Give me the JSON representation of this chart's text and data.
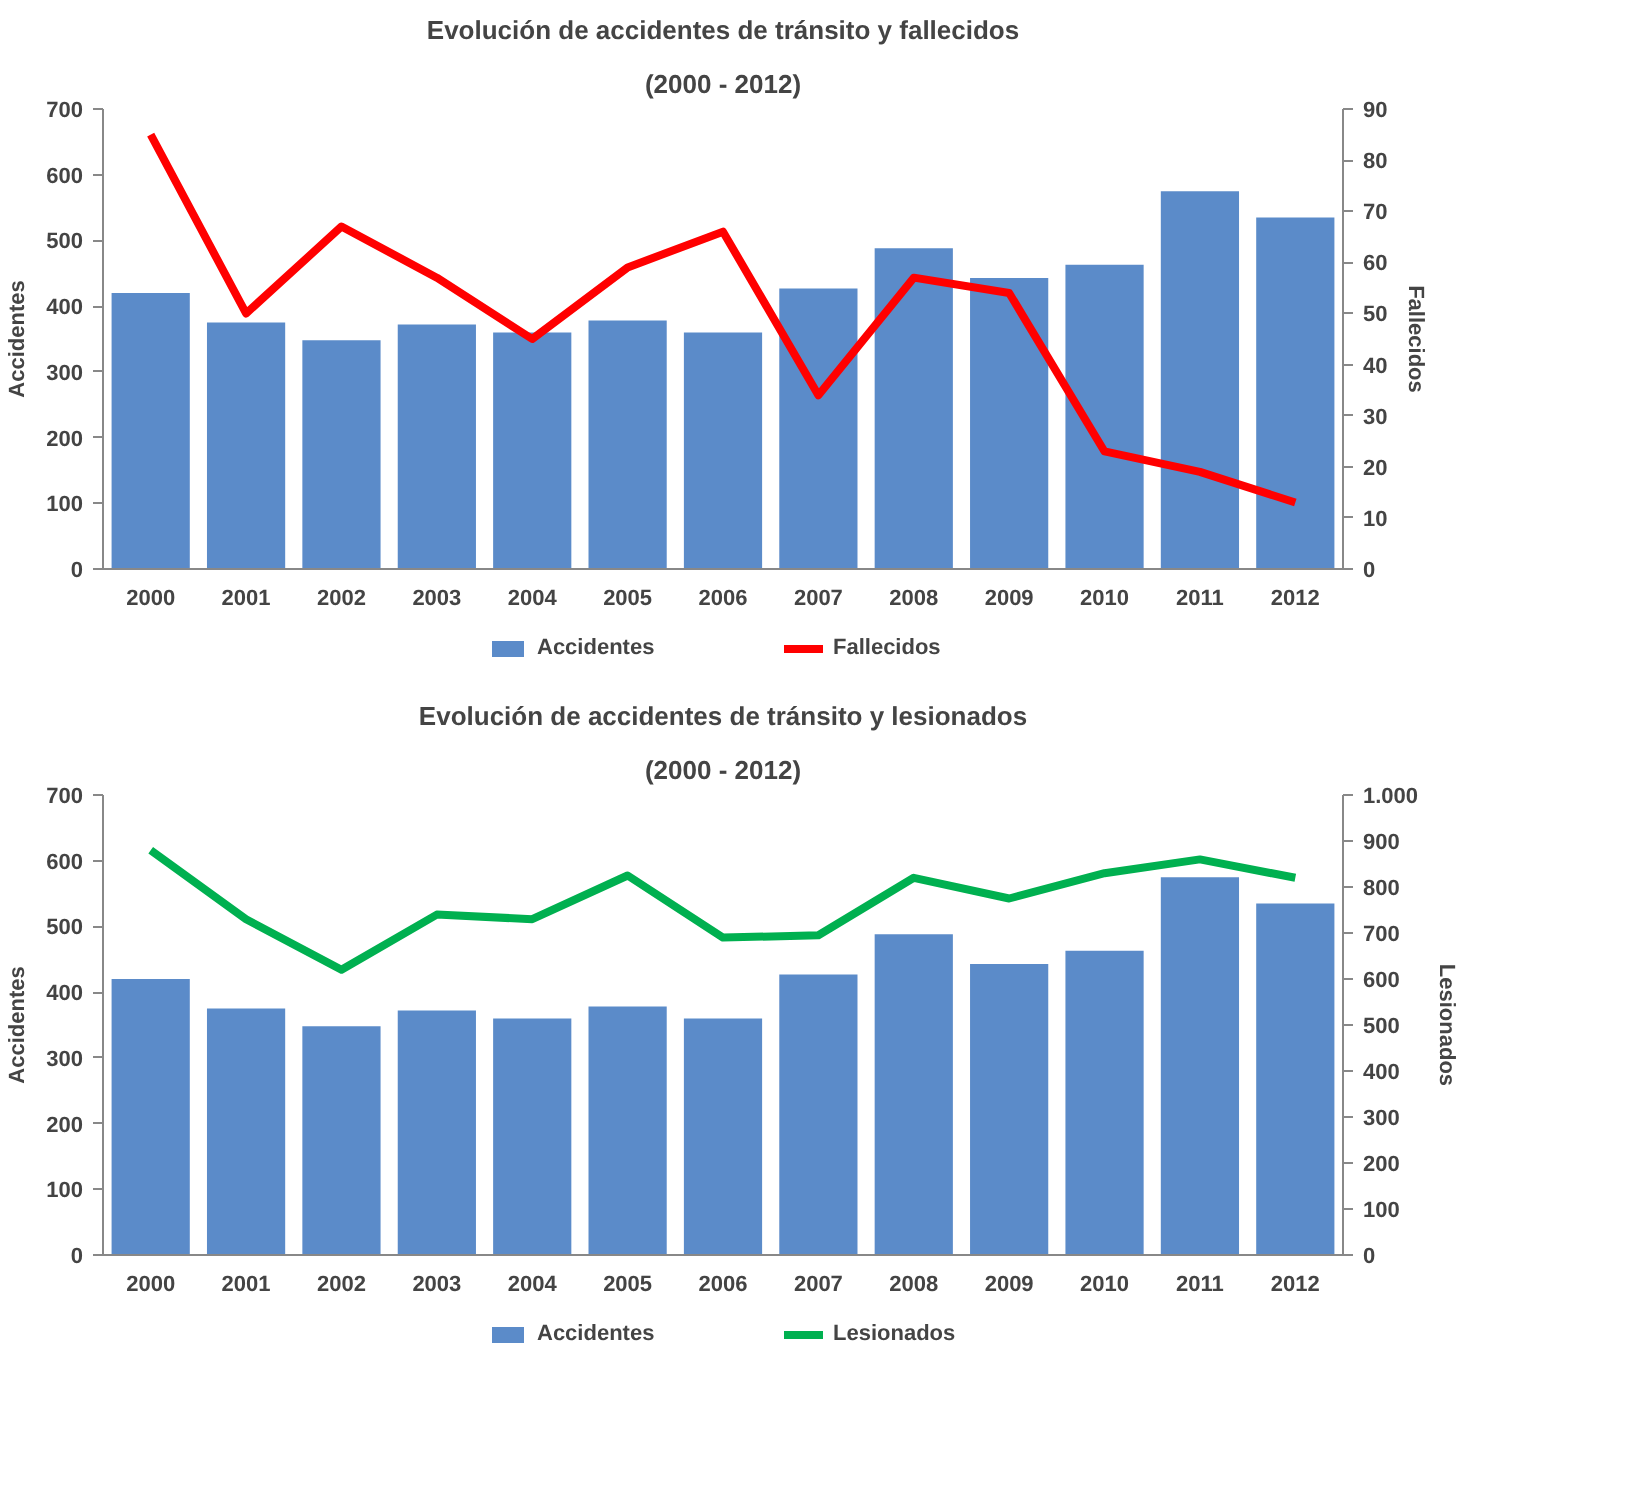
{
  "chart_data": [
    {
      "type": "bar",
      "title": "Evolución de accidentes de tránsito y fallecidos",
      "subtitle": "(2000 - 2012)",
      "ylabel": "Accidentes",
      "y2label": "Fallecidos",
      "categories": [
        "2000",
        "2001",
        "2002",
        "2003",
        "2004",
        "2005",
        "2006",
        "2007",
        "2008",
        "2009",
        "2010",
        "2011",
        "2012"
      ],
      "series": [
        {
          "name": "Accidentes",
          "color": "#5b8bc9",
          "values": [
            420,
            375,
            348,
            372,
            360,
            378,
            360,
            427,
            488,
            443,
            463,
            575,
            535
          ]
        },
        {
          "name": "Fallecidos",
          "type": "line",
          "axis": "y2",
          "color": "#ff0000",
          "values": [
            85,
            50,
            67,
            57,
            45,
            59,
            66,
            34,
            57,
            54,
            23,
            19,
            13
          ]
        }
      ],
      "ylim": [
        0,
        700
      ],
      "yticks": [
        0,
        100,
        200,
        300,
        400,
        500,
        600,
        700
      ],
      "y2lim": [
        0,
        90
      ],
      "y2ticks": [
        0,
        10,
        20,
        30,
        40,
        50,
        60,
        70,
        80,
        90
      ],
      "grid": false,
      "legend": "bottom",
      "marker": "none",
      "line_style": "solid"
    },
    {
      "type": "bar",
      "title": "Evolución de accidentes de tránsito y lesionados",
      "subtitle": "(2000 - 2012)",
      "ylabel": "Accidentes",
      "y2label": "Lesionados",
      "categories": [
        "2000",
        "2001",
        "2002",
        "2003",
        "2004",
        "2005",
        "2006",
        "2007",
        "2008",
        "2009",
        "2010",
        "2011",
        "2012"
      ],
      "series": [
        {
          "name": "Accidentes",
          "color": "#5b8bc9",
          "values": [
            420,
            375,
            348,
            372,
            360,
            378,
            360,
            427,
            488,
            443,
            463,
            575,
            535
          ]
        },
        {
          "name": "Lesionados",
          "type": "line",
          "axis": "y2",
          "color": "#00b050",
          "values": [
            880,
            730,
            620,
            740,
            730,
            825,
            690,
            695,
            820,
            775,
            830,
            860,
            820
          ]
        }
      ],
      "ylim": [
        0,
        700
      ],
      "yticks": [
        0,
        100,
        200,
        300,
        400,
        500,
        600,
        700
      ],
      "y2lim": [
        0,
        1000
      ],
      "y2ticks": [
        0,
        100,
        200,
        300,
        400,
        500,
        600,
        700,
        800,
        900,
        {
          "value": 1000,
          "label": "1.000"
        }
      ],
      "grid": false,
      "legend": "bottom",
      "marker": "none",
      "line_style": "solid"
    }
  ]
}
